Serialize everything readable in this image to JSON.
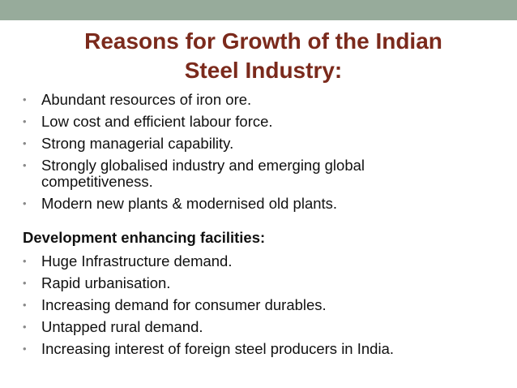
{
  "slide": {
    "title_line1": "Reasons for Growth of the Indian",
    "title_line2": "Steel Industry:",
    "reasons": [
      "Abundant resources of iron ore.",
      "Low cost and efficient labour force.",
      "Strong managerial capability.",
      "Strongly globalised industry and emerging global competitiveness.",
      "Modern new plants & modernised old plants."
    ],
    "section_heading": "Development enhancing facilities:",
    "facilities": [
      "Huge Infrastructure demand.",
      "Rapid urbanisation.",
      "Increasing demand for consumer durables.",
      "Untapped rural demand.",
      "Increasing interest of foreign steel producers in India."
    ],
    "bullet_symbol": "•"
  },
  "colors": {
    "top_band": "#97ab9b",
    "title": "#7b2a1c",
    "text": "#111111",
    "bullet": "#8a8a8a"
  }
}
